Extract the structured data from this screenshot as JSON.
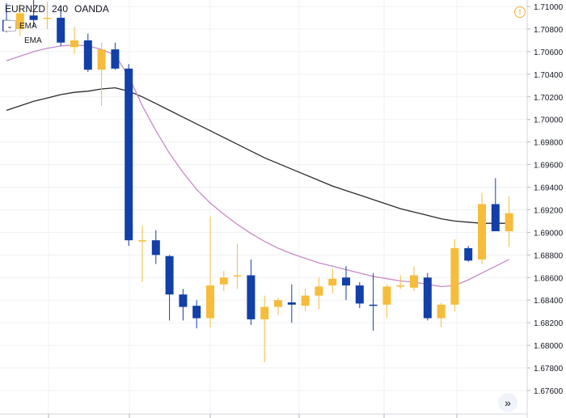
{
  "header": {
    "symbol": "EURNZD",
    "interval": "240",
    "source": "OANDA"
  },
  "legend": {
    "ema_fast_label": "EMA",
    "ema_slow_label": "EMA",
    "collapse_glyph": "⌄"
  },
  "icons": {
    "info": "info-icon",
    "scroll": "double-chevron-right-icon"
  },
  "colors": {
    "bull": "#f5bd3b",
    "bear": "#123fa8",
    "ema_fast": "#c78ac7",
    "ema_slow": "#2b2b2b",
    "grid": "#eef0f3",
    "axis_text": "#131722"
  },
  "chart_data": {
    "type": "candlestick",
    "y_axis_position": "right",
    "yticks": [
      "1.71000",
      "1.70800",
      "1.70600",
      "1.70400",
      "1.70200",
      "1.70000",
      "1.69800",
      "1.69600",
      "1.69400",
      "1.69200",
      "1.69000",
      "1.68800",
      "1.68600",
      "1.68400",
      "1.68200",
      "1.68000",
      "1.67800",
      "1.67600"
    ],
    "ylim": [
      1.6755,
      1.7105
    ],
    "grid": true,
    "candles": [
      {
        "o": 1.7088,
        "h": 1.7103,
        "l": 1.7077,
        "c": 1.7078
      },
      {
        "o": 1.708,
        "h": 1.7102,
        "l": 1.7074,
        "c": 1.7094
      },
      {
        "o": 1.7092,
        "h": 1.711,
        "l": 1.7082,
        "c": 1.7088
      },
      {
        "o": 1.709,
        "h": 1.7104,
        "l": 1.708,
        "c": 1.709
      },
      {
        "o": 1.709,
        "h": 1.71,
        "l": 1.7065,
        "c": 1.7068
      },
      {
        "o": 1.7064,
        "h": 1.7082,
        "l": 1.7058,
        "c": 1.707
      },
      {
        "o": 1.707,
        "h": 1.7076,
        "l": 1.7042,
        "c": 1.7044
      },
      {
        "o": 1.7044,
        "h": 1.7068,
        "l": 1.7012,
        "c": 1.7062
      },
      {
        "o": 1.7062,
        "h": 1.7068,
        "l": 1.7044,
        "c": 1.7045
      },
      {
        "o": 1.7045,
        "h": 1.7049,
        "l": 1.6888,
        "c": 1.6893
      },
      {
        "o": 1.6893,
        "h": 1.6906,
        "l": 1.6856,
        "c": 1.6893
      },
      {
        "o": 1.6893,
        "h": 1.6902,
        "l": 1.6872,
        "c": 1.688
      },
      {
        "o": 1.6879,
        "h": 1.688,
        "l": 1.6822,
        "c": 1.6845
      },
      {
        "o": 1.6845,
        "h": 1.685,
        "l": 1.6822,
        "c": 1.6834
      },
      {
        "o": 1.6835,
        "h": 1.684,
        "l": 1.6815,
        "c": 1.6824
      },
      {
        "o": 1.6824,
        "h": 1.6914,
        "l": 1.6816,
        "c": 1.6853
      },
      {
        "o": 1.6854,
        "h": 1.6866,
        "l": 1.6848,
        "c": 1.686
      },
      {
        "o": 1.6861,
        "h": 1.689,
        "l": 1.685,
        "c": 1.6862
      },
      {
        "o": 1.6862,
        "h": 1.6876,
        "l": 1.6818,
        "c": 1.6823
      },
      {
        "o": 1.6823,
        "h": 1.6844,
        "l": 1.6785,
        "c": 1.6834
      },
      {
        "o": 1.6834,
        "h": 1.6842,
        "l": 1.6827,
        "c": 1.684
      },
      {
        "o": 1.6838,
        "h": 1.6854,
        "l": 1.682,
        "c": 1.6836
      },
      {
        "o": 1.6835,
        "h": 1.685,
        "l": 1.683,
        "c": 1.6844
      },
      {
        "o": 1.6844,
        "h": 1.686,
        "l": 1.6832,
        "c": 1.6852
      },
      {
        "o": 1.6853,
        "h": 1.6868,
        "l": 1.6846,
        "c": 1.6859
      },
      {
        "o": 1.686,
        "h": 1.687,
        "l": 1.684,
        "c": 1.6853
      },
      {
        "o": 1.6853,
        "h": 1.6856,
        "l": 1.6833,
        "c": 1.6837
      },
      {
        "o": 1.6836,
        "h": 1.6864,
        "l": 1.6813,
        "c": 1.6835
      },
      {
        "o": 1.6836,
        "h": 1.6854,
        "l": 1.6824,
        "c": 1.6852
      },
      {
        "o": 1.6853,
        "h": 1.6862,
        "l": 1.685,
        "c": 1.6853
      },
      {
        "o": 1.6851,
        "h": 1.687,
        "l": 1.6848,
        "c": 1.6862
      },
      {
        "o": 1.686,
        "h": 1.6864,
        "l": 1.6822,
        "c": 1.6824
      },
      {
        "o": 1.6824,
        "h": 1.6838,
        "l": 1.6816,
        "c": 1.6836
      },
      {
        "o": 1.6836,
        "h": 1.6894,
        "l": 1.683,
        "c": 1.6886
      },
      {
        "o": 1.6886,
        "h": 1.6888,
        "l": 1.6874,
        "c": 1.6875
      },
      {
        "o": 1.6876,
        "h": 1.6935,
        "l": 1.6872,
        "c": 1.6925
      },
      {
        "o": 1.6925,
        "h": 1.6948,
        "l": 1.6901,
        "c": 1.6901
      },
      {
        "o": 1.6901,
        "h": 1.6932,
        "l": 1.6887,
        "c": 1.6917
      }
    ],
    "ema_fast": [
      1.7052,
      1.7056,
      1.706,
      1.7063,
      1.7065,
      1.7066,
      1.7065,
      1.7062,
      1.7057,
      1.7038,
      1.7012,
      1.699,
      1.697,
      1.6953,
      1.6938,
      1.6926,
      1.6916,
      1.6907,
      1.6899,
      1.6892,
      1.6886,
      1.6881,
      1.6877,
      1.6873,
      1.687,
      1.6867,
      1.6864,
      1.6861,
      1.6859,
      1.6857,
      1.6856,
      1.6854,
      1.6852,
      1.6853,
      1.6858,
      1.6864,
      1.687,
      1.6876
    ],
    "ema_slow": [
      1.7008,
      1.7012,
      1.7016,
      1.7019,
      1.7022,
      1.7024,
      1.7025,
      1.7027,
      1.7028,
      1.7025,
      1.702,
      1.7014,
      1.7008,
      1.7002,
      1.6996,
      1.699,
      1.6984,
      1.6978,
      1.6972,
      1.6966,
      1.6961,
      1.6956,
      1.6951,
      1.6946,
      1.6941,
      1.6937,
      1.6933,
      1.6929,
      1.6925,
      1.6921,
      1.6918,
      1.6915,
      1.6912,
      1.691,
      1.6909,
      1.6908,
      1.6908,
      1.6908
    ]
  }
}
